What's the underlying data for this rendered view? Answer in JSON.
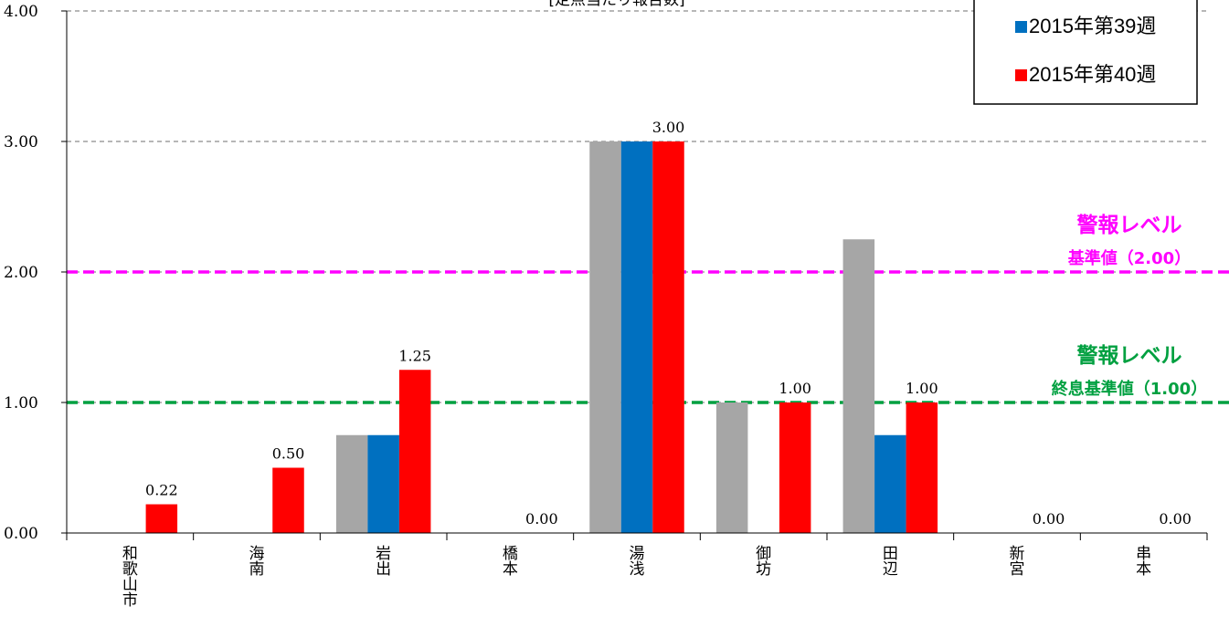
{
  "chart_data": {
    "type": "bar",
    "title": "[定点当たり報告数]",
    "categories": [
      "和歌山市",
      "海南",
      "岩出",
      "橋本",
      "湯浅",
      "御坊",
      "田辺",
      "新宮",
      "串本"
    ],
    "series": [
      {
        "name": "",
        "color": "#a6a6a6",
        "values": [
          0,
          0,
          0.75,
          0,
          3.0,
          1.0,
          2.25,
          0,
          0
        ]
      },
      {
        "name": "2015年第39週",
        "color": "#0070c0",
        "values": [
          0,
          0,
          0.75,
          0,
          3.0,
          0,
          0.75,
          0,
          0
        ]
      },
      {
        "name": "2015年第40週",
        "color": "#ff0000",
        "values": [
          0.22,
          0.5,
          1.25,
          0,
          3.0,
          1.0,
          1.0,
          0,
          0
        ]
      }
    ],
    "data_labels": [
      "0.22",
      "0.50",
      "1.25",
      "0.00",
      "3.00",
      "1.00",
      "1.00",
      "0.00",
      "0.00"
    ],
    "ylim": [
      0,
      4
    ],
    "yticks": [
      "0.00",
      "1.00",
      "2.00",
      "3.00",
      "4.00"
    ],
    "grid": true,
    "legend_position": "top-right",
    "reference_lines": [
      {
        "value": 2.0,
        "color": "#ff00ff",
        "label_line1": "警報レベル",
        "label_line2": "基準値（2.00）"
      },
      {
        "value": 1.0,
        "color": "#00a040",
        "label_line1": "警報レベル",
        "label_line2": "終息基準値（1.00）"
      }
    ]
  }
}
